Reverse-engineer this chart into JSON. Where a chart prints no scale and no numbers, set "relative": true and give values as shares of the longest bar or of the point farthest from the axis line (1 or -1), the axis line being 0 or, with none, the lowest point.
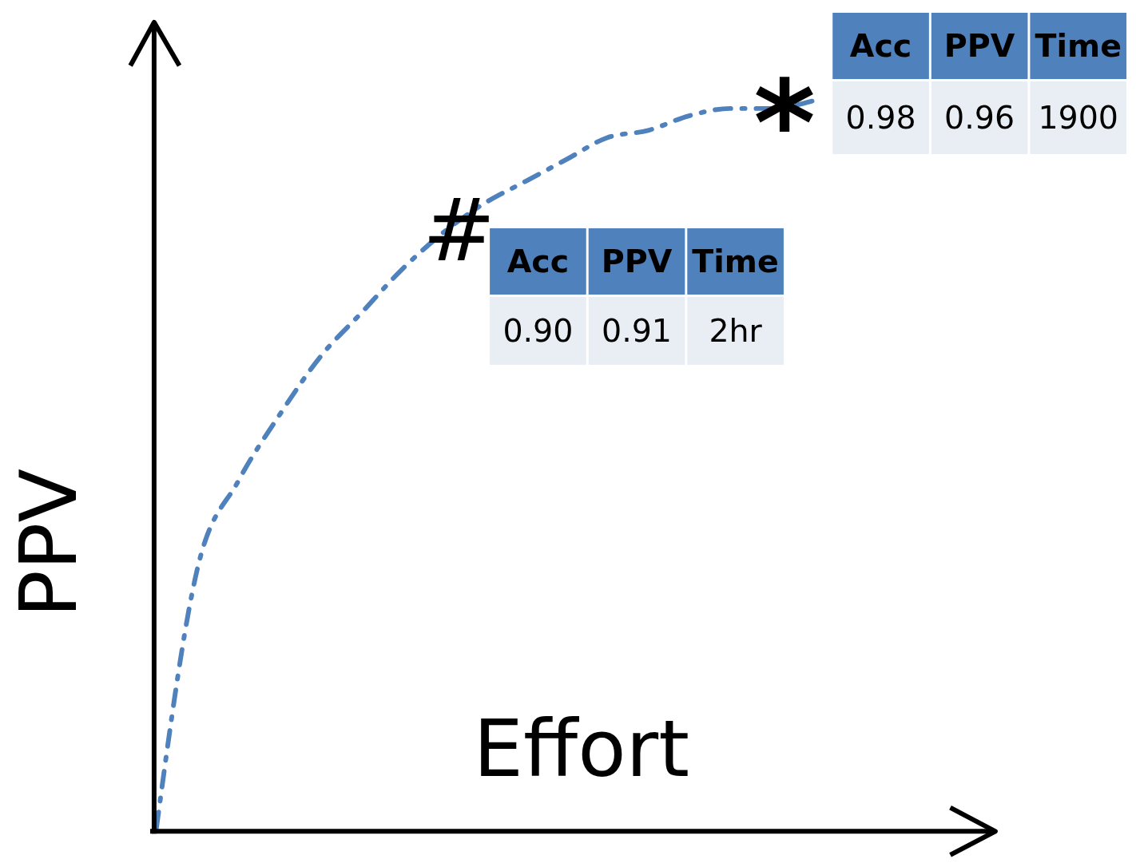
{
  "chart_data": {
    "type": "line",
    "relative": true,
    "xlabel": "Effort",
    "ylabel": "PPV",
    "line_style": "dashed",
    "categories": [
      null,
      null,
      null,
      null,
      null,
      null,
      null,
      null,
      null,
      null,
      null,
      null,
      null,
      null,
      null,
      null,
      null
    ],
    "series": [
      {
        "color": "#4f81bd",
        "values": [
          0.005,
          0.36,
          0.48,
          0.57,
          0.65,
          0.71,
          0.77,
          0.82,
          0.86,
          0.89,
          0.92,
          0.95,
          0.96,
          0.98,
          0.99,
          0.99,
          1
        ]
      }
    ],
    "annotations": [
      "#",
      "Acc",
      "PPV",
      "Time",
      "0.90",
      "0.91",
      "2hr",
      "*",
      "Acc",
      "PPV",
      "Time",
      "0.98",
      "0.96",
      "1900"
    ]
  }
}
